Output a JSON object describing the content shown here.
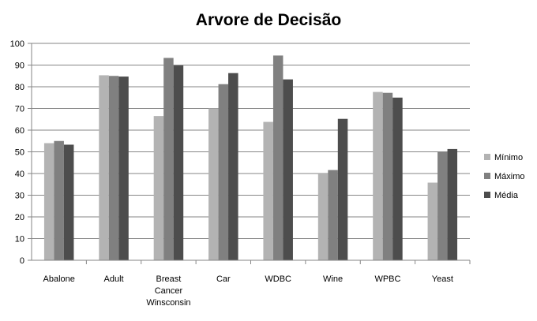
{
  "chart_data": {
    "type": "bar",
    "title": "Arvore de Decisão",
    "xlabel": "",
    "ylabel": "",
    "ylim": [
      0,
      100
    ],
    "ytick_step": 10,
    "grid": true,
    "legend_position": "right",
    "categories": [
      [
        "Abalone"
      ],
      [
        "Adult"
      ],
      [
        "Breast",
        "Cancer",
        "Winsconsin"
      ],
      [
        "Car"
      ],
      [
        "WDBC"
      ],
      [
        "Wine"
      ],
      [
        "WPBC"
      ],
      [
        "Yeast"
      ]
    ],
    "series": [
      {
        "name": "Mínimo",
        "color": "#b3b3b3",
        "values": [
          54,
          85.3,
          66.5,
          70,
          63.8,
          40,
          77.6,
          35.8
        ]
      },
      {
        "name": "Máximo",
        "color": "#808080",
        "values": [
          55,
          85,
          93.3,
          81.2,
          94.4,
          41.6,
          77.2,
          50
        ]
      },
      {
        "name": "Média",
        "color": "#4d4d4d",
        "values": [
          53.3,
          84.7,
          89.8,
          86.3,
          83.4,
          65.2,
          75,
          51.3
        ]
      }
    ]
  }
}
